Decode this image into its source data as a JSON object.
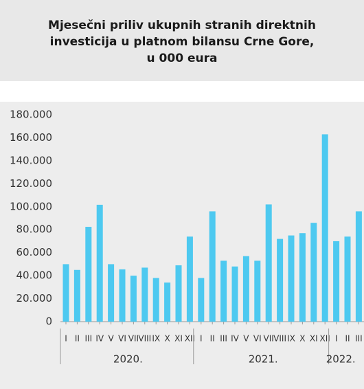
{
  "chart_data": {
    "type": "bar",
    "title_lines": [
      "Mjesečni priliv ukupnih stranih direktnih",
      "investicija u platnom bilansu Crne Gore,",
      "u 000 eura"
    ],
    "groups": [
      {
        "label": "2020.",
        "categories": [
          "I",
          "II",
          "III",
          "IV",
          "V",
          "VI",
          "VII",
          "VIII",
          "IX",
          "X",
          "XI",
          "XII"
        ],
        "values": [
          50000,
          45000,
          82500,
          101700,
          50000,
          45500,
          40000,
          47000,
          38000,
          34000,
          49000,
          74000
        ]
      },
      {
        "label": "2021.",
        "categories": [
          "I",
          "II",
          "III",
          "IV",
          "V",
          "VI",
          "VII",
          "VIII",
          "IX",
          "X",
          "XI",
          "XII"
        ],
        "values": [
          38000,
          96000,
          53000,
          48000,
          57000,
          53000,
          102000,
          72000,
          75000,
          77000,
          86000,
          163000
        ]
      },
      {
        "label": "2022.",
        "categories": [
          "I",
          "II",
          "III"
        ],
        "values": [
          70000,
          74000,
          96000
        ]
      }
    ],
    "color": "#4dc9f0",
    "ylim": [
      0,
      180000
    ],
    "yticks": [
      0,
      {
        "value": 20000,
        "label": "20.000"
      },
      {
        "value": 40000,
        "label": "40.000"
      },
      {
        "value": 60000,
        "label": "60.000"
      },
      {
        "value": 80000,
        "label": "80.000"
      },
      {
        "value": 100000,
        "label": "100.000"
      },
      {
        "value": 120000,
        "label": "120.000"
      },
      {
        "value": 140000,
        "label": "140.000"
      },
      {
        "value": 160000,
        "label": "160.000"
      },
      {
        "value": 180000,
        "label": "180.000"
      }
    ]
  }
}
